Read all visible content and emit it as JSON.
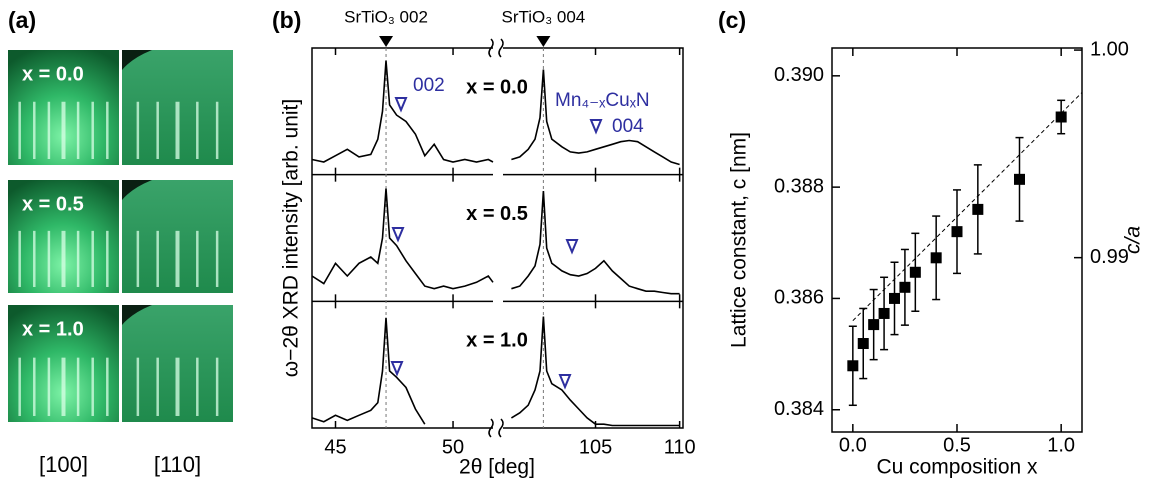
{
  "panel_a": {
    "label": "(a)",
    "rows": [
      "x = 0.0",
      "x = 0.5",
      "x = 1.0"
    ],
    "columns": [
      "[100]",
      "[110]"
    ]
  },
  "chart_data": [
    {
      "type": "line",
      "panel_label": "(b)",
      "xlabel": "2θ [deg]",
      "ylabel": "ω−2θ XRD intensity [arb. unit]",
      "xlim": [
        44,
        110.2
      ],
      "x_break": [
        51.7,
        99.5
      ],
      "xticks": [
        45,
        50,
        105,
        110
      ],
      "ylim": [
        0,
        1
      ],
      "x": [
        44,
        44.5,
        45,
        45.5,
        46,
        46.5,
        46.8,
        47.0,
        47.15,
        47.3,
        47.6,
        48.0,
        48.4,
        48.8,
        49.2,
        49.6,
        50.0,
        50.5,
        51.0,
        51.5,
        51.7,
        99.5,
        100,
        100.5,
        101,
        101.4,
        101.7,
        101.9,
        102.1,
        102.4,
        103,
        103.5,
        104,
        104.5,
        105,
        105.5,
        106,
        106.5,
        107,
        107.5,
        108,
        108.5,
        109,
        109.5,
        110
      ],
      "series": [
        {
          "name": "x = 0.0",
          "color": "#000000",
          "values": [
            0.12,
            0.1,
            0.15,
            0.2,
            0.14,
            0.16,
            0.28,
            0.5,
            0.9,
            0.55,
            0.47,
            0.42,
            0.32,
            0.15,
            0.24,
            0.12,
            0.1,
            0.12,
            0.1,
            0.12,
            0.1,
            null,
            0.12,
            0.14,
            0.2,
            0.28,
            0.45,
            0.83,
            0.42,
            0.28,
            0.22,
            0.18,
            0.17,
            0.18,
            0.2,
            0.22,
            0.24,
            0.26,
            0.27,
            0.26,
            0.22,
            0.18,
            0.14,
            0.1,
            0.08
          ]
        },
        {
          "name": "x = 0.5",
          "color": "#000000",
          "values": [
            0.2,
            0.14,
            0.3,
            0.2,
            0.3,
            0.35,
            0.3,
            0.5,
            0.89,
            0.5,
            0.44,
            0.32,
            0.22,
            0.12,
            0.1,
            0.12,
            0.1,
            0.12,
            0.15,
            0.2,
            0.15,
            null,
            0.1,
            0.12,
            0.2,
            0.28,
            0.45,
            0.87,
            0.42,
            0.3,
            0.24,
            0.21,
            0.2,
            0.22,
            0.26,
            0.32,
            0.24,
            0.18,
            0.12,
            0.1,
            0.08,
            0.08,
            0.07,
            0.06,
            0.06
          ]
        },
        {
          "name": "x = 1.0",
          "color": "#000000",
          "values": [
            0.08,
            0.05,
            0.1,
            0.06,
            0.1,
            0.14,
            0.2,
            0.45,
            0.87,
            0.45,
            0.4,
            0.32,
            0.15,
            0.03,
            null,
            null,
            null,
            null,
            null,
            null,
            null,
            null,
            0.08,
            0.12,
            0.18,
            0.3,
            0.45,
            0.88,
            0.45,
            0.35,
            0.3,
            0.22,
            0.15,
            0.08,
            0.03,
            0.03,
            0.02,
            0.02,
            0.02,
            0.02,
            0.02,
            0.02,
            0.02,
            0.02,
            0.02
          ]
        }
      ],
      "reference_lines": [
        {
          "label": "SrTiO₃ 002",
          "x": 47.15
        },
        {
          "label": "SrTiO₃ 004",
          "x": 101.9
        }
      ],
      "annotations": {
        "peak_002": "002",
        "film": "Mn₄₋ₓCuₓN",
        "peak_004": "004"
      }
    },
    {
      "type": "scatter",
      "panel_label": "(c)",
      "xlabel": "Cu composition x",
      "ylabel": "Lattice constant, c [nm]",
      "y2label": "c/a",
      "color": "#000000",
      "x": [
        0,
        0.05,
        0.1,
        0.15,
        0.2,
        0.25,
        0.3,
        0.4,
        0.5,
        0.6,
        0.8,
        1.0
      ],
      "values": [
        0.38479,
        0.38519,
        0.38553,
        0.38573,
        0.386,
        0.3862,
        0.38647,
        0.38673,
        0.3872,
        0.3876,
        0.38814,
        0.38926
      ],
      "errors": [
        0.00071,
        0.00063,
        0.00063,
        0.00065,
        0.00065,
        0.00068,
        0.0007,
        0.00075,
        0.00075,
        0.0008,
        0.00075,
        0.0003
      ],
      "fit": {
        "x": [
          0,
          1.1
        ],
        "values": [
          0.3856,
          0.3897
        ]
      },
      "xlim": [
        -0.1,
        1.1
      ],
      "xticks": [
        {
          "value": 0,
          "label": "0.0"
        },
        {
          "value": 0.5,
          "label": "0.5"
        },
        {
          "value": 1,
          "label": "1.0"
        }
      ],
      "ylim": [
        0.3836,
        0.3905
      ],
      "yticks": [
        {
          "value": 0.384,
          "label": "0.384"
        },
        {
          "value": 0.386,
          "label": "0.386"
        },
        {
          "value": 0.388,
          "label": "0.388"
        },
        {
          "value": 0.39,
          "label": "0.390"
        }
      ],
      "y2lim": [
        0.9816,
        1.0001
      ],
      "y2ticks": [
        {
          "value": 0.99,
          "label": "0.99"
        },
        {
          "value": 1,
          "label": "1.00"
        }
      ]
    }
  ]
}
